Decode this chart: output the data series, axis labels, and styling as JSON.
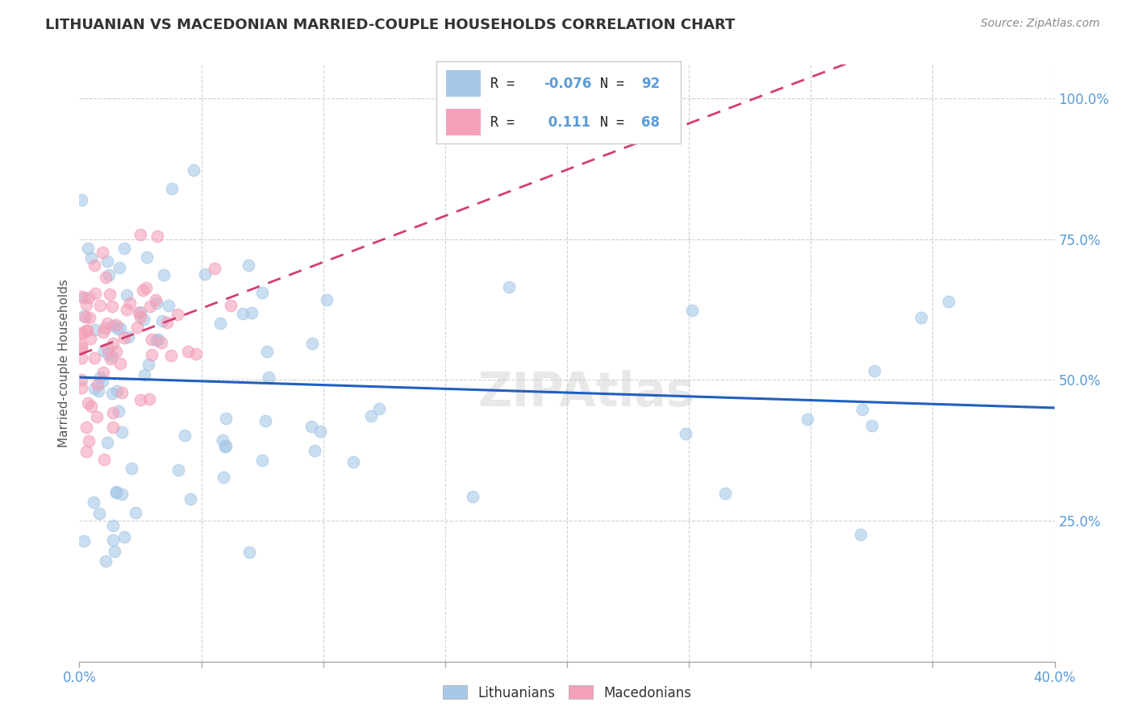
{
  "title": "LITHUANIAN VS MACEDONIAN MARRIED-COUPLE HOUSEHOLDS CORRELATION CHART",
  "source": "Source: ZipAtlas.com",
  "ylabel": "Married-couple Households",
  "x_min": 0.0,
  "x_max": 0.4,
  "y_min": 0.0,
  "y_max": 1.06,
  "x_tick_labels_bottom": [
    "0.0%",
    "40.0%"
  ],
  "x_tick_positions_bottom": [
    0.0,
    0.4
  ],
  "y_tick_labels": [
    "25.0%",
    "50.0%",
    "75.0%",
    "100.0%"
  ],
  "y_tick_positions": [
    0.25,
    0.5,
    0.75,
    1.0
  ],
  "watermark": "ZIPAtlas",
  "blue_scatter_color": "#a8c8e8",
  "pink_scatter_color": "#f4a0b8",
  "blue_line_color": "#2060c0",
  "pink_line_color": "#d04070",
  "grid_color": "#d0d0d0",
  "title_color": "#333333",
  "source_color": "#888888",
  "axis_tick_color": "#5b9bd5",
  "legend_R1": "-0.076",
  "legend_N1": "92",
  "legend_R2": "0.111",
  "legend_N2": "68",
  "legend_label1": "Lithuanians",
  "legend_label2": "Macedonians",
  "lith_seed": 7,
  "mac_seed": 13
}
